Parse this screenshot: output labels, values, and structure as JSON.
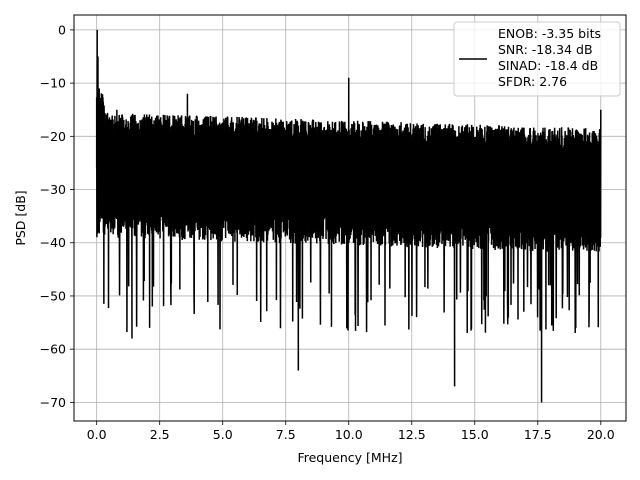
{
  "chart_data": {
    "type": "line",
    "xlabel": "Frequency [MHz]",
    "ylabel": "PSD [dB]",
    "xlim": [
      -0.9,
      21.0
    ],
    "ylim": [
      -73.5,
      2.8
    ],
    "xticks": [
      0.0,
      2.5,
      5.0,
      7.5,
      10.0,
      12.5,
      15.0,
      17.5,
      20.0
    ],
    "xtick_labels": [
      "0.0",
      "2.5",
      "5.0",
      "7.5",
      "10.0",
      "12.5",
      "15.0",
      "17.5",
      "20.0"
    ],
    "yticks": [
      0,
      -10,
      -20,
      -30,
      -40,
      -50,
      -60,
      -70
    ],
    "ytick_labels": [
      "0",
      "−10",
      "−20",
      "−30",
      "−40",
      "−50",
      "−60",
      "−70"
    ],
    "grid": true,
    "legend_position": "top-right",
    "series": [
      {
        "name": "ENOB: -3.35 bits\nSNR: -18.34 dB\nSINAD: -18.4 dB\nSFDR: 2.76",
        "legend_lines": [
          "ENOB: -3.35 bits",
          "SNR: -18.34 dB",
          "SINAD: -18.4 dB",
          "SFDR: 2.76"
        ],
        "color": "#000000",
        "description_note": "dense noisy PSD trace",
        "x": [
          0.0,
          0.02,
          0.05,
          0.1,
          0.15,
          0.2,
          0.3,
          0.4,
          0.6,
          0.8,
          1.0,
          1.4,
          2.1,
          3.6,
          8.0,
          10.0,
          14.2,
          17.65,
          20.0
        ],
        "y": [
          -26.0,
          0.0,
          -5.0,
          -11.0,
          -14.0,
          -16.0,
          -17.5,
          -16.0,
          -18.0,
          -15.0,
          -16.0,
          -58.0,
          -56.0,
          -12.0,
          -64.0,
          -9.0,
          -67.0,
          -70.0,
          -15.0
        ],
        "band_upper": -17.5,
        "band_lower": -37.0,
        "dip_floor": -55.0
      }
    ]
  }
}
